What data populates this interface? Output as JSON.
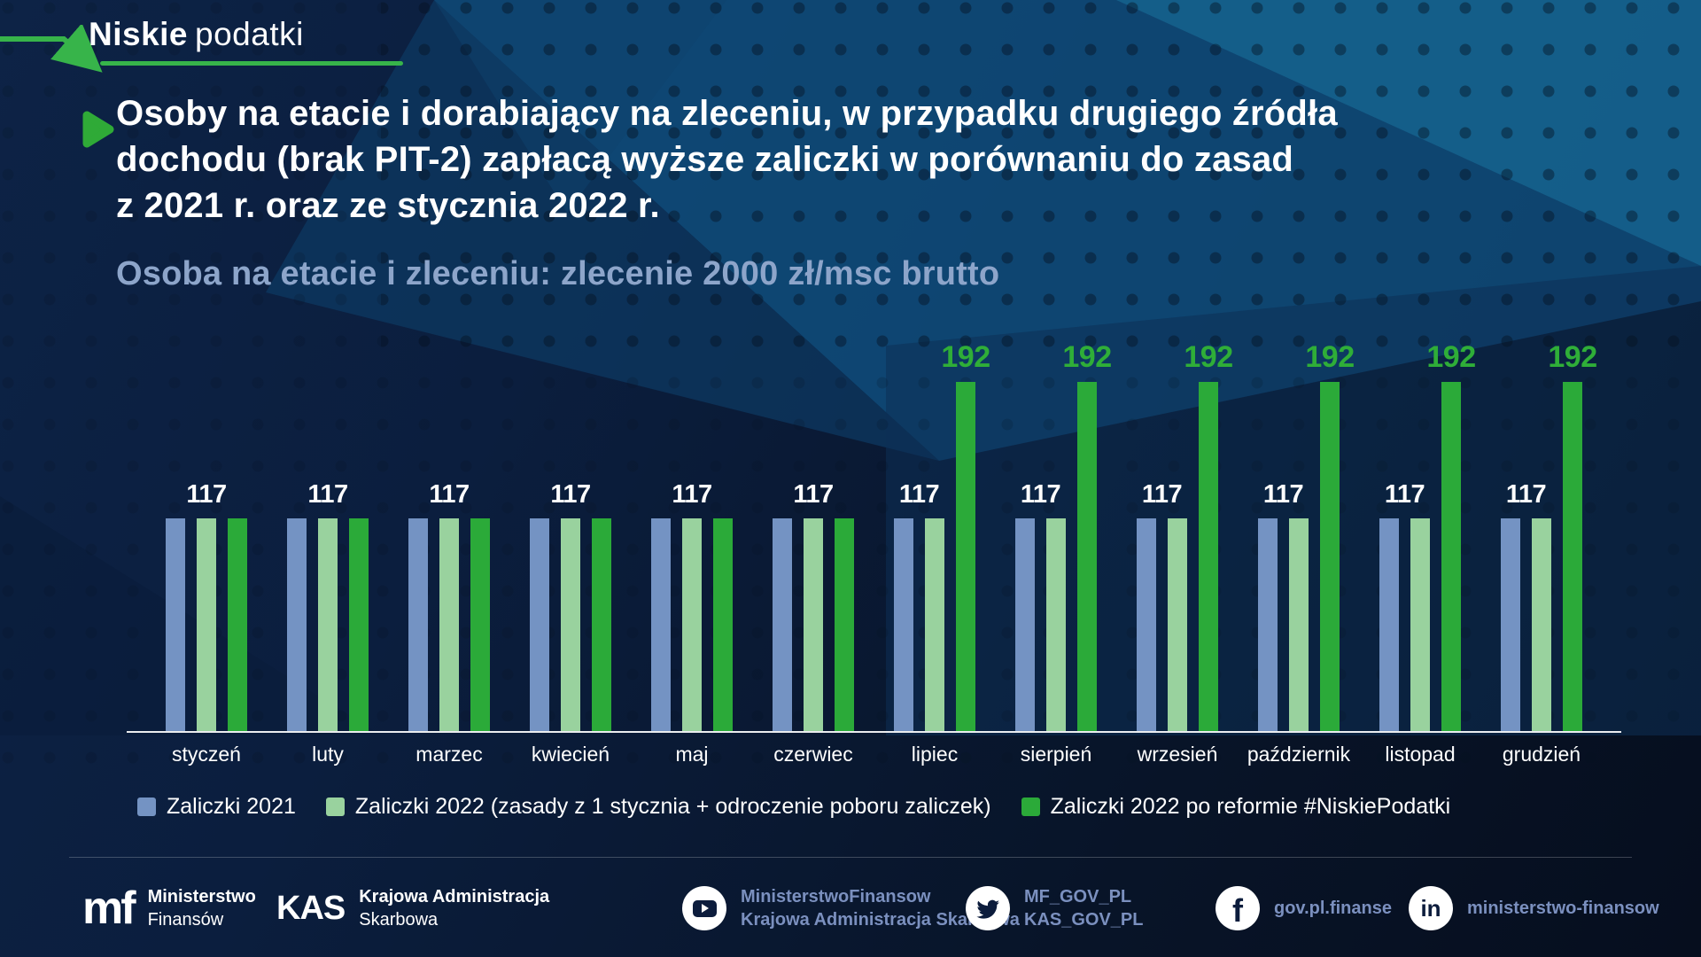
{
  "brand": {
    "name_bold": "Niskie",
    "name_light": "podatki"
  },
  "headline": {
    "lines": [
      "Osoby na etacie i dorabiający na zleceniu, w przypadku drugiego źródła",
      "dochodu (brak PIT-2) zapłacą wyższe zaliczki w porównaniu do zasad",
      "z 2021 r. oraz ze stycznia 2022 r."
    ]
  },
  "subtitle": "Osoba na etacie i zleceniu: zlecenie 2000 zł/msc brutto",
  "chart_data": {
    "type": "bar",
    "title": "Osoba na etacie i zleceniu: zlecenie 2000 zł/msc brutto",
    "categories": [
      "styczeń",
      "luty",
      "marzec",
      "kwiecień",
      "maj",
      "czerwiec",
      "lipiec",
      "sierpień",
      "wrzesień",
      "październik",
      "listopad",
      "grudzień"
    ],
    "series": [
      {
        "name": "Zaliczki 2021",
        "color": "#7493c3",
        "values": [
          117,
          117,
          117,
          117,
          117,
          117,
          117,
          117,
          117,
          117,
          117,
          117
        ]
      },
      {
        "name": "Zaliczki 2022 (zasady z 1 stycznia + odroczenie poboru zaliczek)",
        "color": "#99d29e",
        "values": [
          117,
          117,
          117,
          117,
          117,
          117,
          117,
          117,
          117,
          117,
          117,
          117
        ]
      },
      {
        "name": "Zaliczki 2022 po reformie #NiskiePodatki",
        "color": "#2baa39",
        "values": [
          117,
          117,
          117,
          117,
          117,
          117,
          192,
          192,
          192,
          192,
          192,
          192
        ]
      }
    ],
    "ylim": [
      0,
      200
    ],
    "grid": false,
    "value_labels": true,
    "legend_position": "bottom"
  },
  "footer": {
    "mf": {
      "logo": "mf",
      "line1": "Ministerstwo",
      "line2": "Finansów"
    },
    "kas": {
      "logo": "KAS",
      "line1": "Krajowa Administracja",
      "line2": "Skarbowa"
    },
    "youtube": {
      "line1": "MinisterstwoFinansow",
      "line2": "Krajowa Administracja Skarbowa"
    },
    "twitter": {
      "line1": "MF_GOV_PL",
      "line2": "KAS_GOV_PL"
    },
    "facebook": {
      "label": "gov.pl.finanse"
    },
    "linkedin": {
      "label": "ministerstwo-finansow"
    }
  },
  "colors": {
    "accent_green": "#37b44a",
    "bar_blue": "#7493c3",
    "bar_light_green": "#99d29e",
    "bar_green": "#2baa39",
    "value_label_green": "#2fae38",
    "subtitle_text": "#8da5ca",
    "social_text": "#7b90bf",
    "background": "#0b1e3e"
  }
}
